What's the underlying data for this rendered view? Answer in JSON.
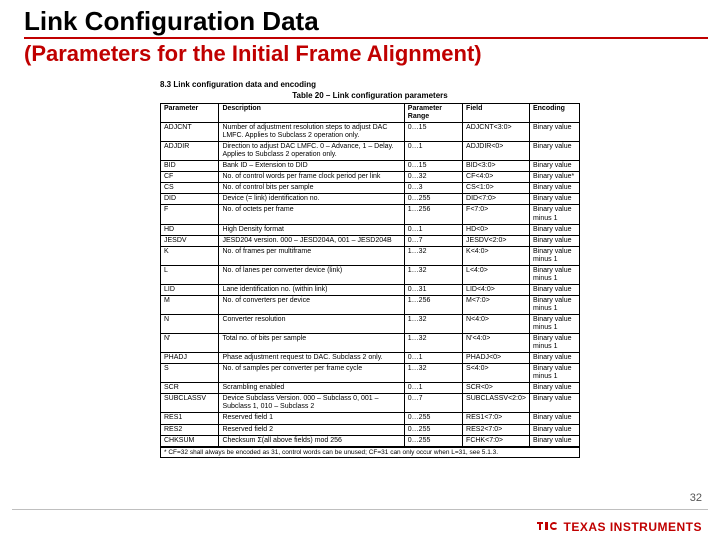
{
  "header": {
    "title": "Link Configuration Data",
    "subtitle": "(Parameters for the Initial Frame Alignment)"
  },
  "doc": {
    "section": "8.3   Link configuration data and encoding",
    "table_caption": "Table 20 – Link configuration parameters",
    "columns": [
      "Parameter",
      "Description",
      "Parameter Range",
      "Field",
      "Encoding"
    ],
    "rows": [
      {
        "p": "ADJCNT",
        "d": "Number of adjustment resolution steps to adjust DAC LMFC. Applies to Subclass 2 operation only.",
        "r": "0…15",
        "f": "ADJCNT<3:0>",
        "e": "Binary value"
      },
      {
        "p": "ADJDIR",
        "d": "Direction to adjust DAC LMFC. 0 – Advance, 1 – Delay. Applies to Subclass 2 operation only.",
        "r": "0…1",
        "f": "ADJDIR<0>",
        "e": "Binary value"
      },
      {
        "p": "BID",
        "d": "Bank ID – Extension to DID",
        "r": "0…15",
        "f": "BID<3:0>",
        "e": "Binary value"
      },
      {
        "p": "CF",
        "d": "No. of control words per frame clock period per link",
        "r": "0…32",
        "f": "CF<4:0>",
        "e": "Binary value*"
      },
      {
        "p": "CS",
        "d": "No. of control bits per sample",
        "r": "0…3",
        "f": "CS<1:0>",
        "e": "Binary value"
      },
      {
        "p": "DID",
        "d": "Device (= link) identification no.",
        "r": "0…255",
        "f": "DID<7:0>",
        "e": "Binary value"
      },
      {
        "p": "F",
        "d": "No. of octets per frame",
        "r": "1…256",
        "f": "F<7:0>",
        "e": "Binary value minus 1"
      },
      {
        "p": "HD",
        "d": "High Density format",
        "r": "0…1",
        "f": "HD<0>",
        "e": "Binary value"
      },
      {
        "p": "JESDV",
        "d": "JESD204 version. 000 – JESD204A, 001 – JESD204B",
        "r": "0…7",
        "f": "JESDV<2:0>",
        "e": "Binary value"
      },
      {
        "p": "K",
        "d": "No. of frames per multiframe",
        "r": "1…32",
        "f": "K<4:0>",
        "e": "Binary value minus 1"
      },
      {
        "p": "L",
        "d": "No. of lanes per converter device (link)",
        "r": "1…32",
        "f": "L<4:0>",
        "e": "Binary value minus 1"
      },
      {
        "p": "LID",
        "d": "Lane identification no. (within link)",
        "r": "0…31",
        "f": "LID<4:0>",
        "e": "Binary value"
      },
      {
        "p": "M",
        "d": "No. of converters per device",
        "r": "1…256",
        "f": "M<7:0>",
        "e": "Binary value minus 1"
      },
      {
        "p": "N",
        "d": "Converter resolution",
        "r": "1…32",
        "f": "N<4:0>",
        "e": "Binary value minus 1"
      },
      {
        "p": "N'",
        "d": "Total no. of bits per sample",
        "r": "1…32",
        "f": "N'<4:0>",
        "e": "Binary value minus 1"
      },
      {
        "p": "PHADJ",
        "d": "Phase adjustment request to DAC. Subclass 2 only.",
        "r": "0…1",
        "f": "PHADJ<0>",
        "e": "Binary value"
      },
      {
        "p": "S",
        "d": "No. of samples per converter per frame cycle",
        "r": "1…32",
        "f": "S<4:0>",
        "e": "Binary value minus 1"
      },
      {
        "p": "SCR",
        "d": "Scrambling enabled",
        "r": "0…1",
        "f": "SCR<0>",
        "e": "Binary value"
      },
      {
        "p": "SUBCLASSV",
        "d": "Device Subclass Version. 000 – Subclass 0, 001 – Subclass 1, 010 – Subclass 2",
        "r": "0…7",
        "f": "SUBCLASSV<2:0>",
        "e": "Binary value"
      },
      {
        "p": "RES1",
        "d": "Reserved field 1",
        "r": "0…255",
        "f": "RES1<7:0>",
        "e": "Binary value"
      },
      {
        "p": "RES2",
        "d": "Reserved field 2",
        "r": "0…255",
        "f": "RES2<7:0>",
        "e": "Binary value"
      },
      {
        "p": "CHKSUM",
        "d": "Checksum Σ(all above fields) mod 256",
        "r": "0…255",
        "f": "FCHK<7:0>",
        "e": "Binary value"
      }
    ],
    "footnote": "* CF=32 shall always be encoded as 31, control words can be unused; CF=31 can only occur when L=31, see 5.1.3."
  },
  "footer": {
    "page_number": "32",
    "logo_text": "TEXAS INSTRUMENTS"
  },
  "colors": {
    "accent": "#c00000"
  }
}
